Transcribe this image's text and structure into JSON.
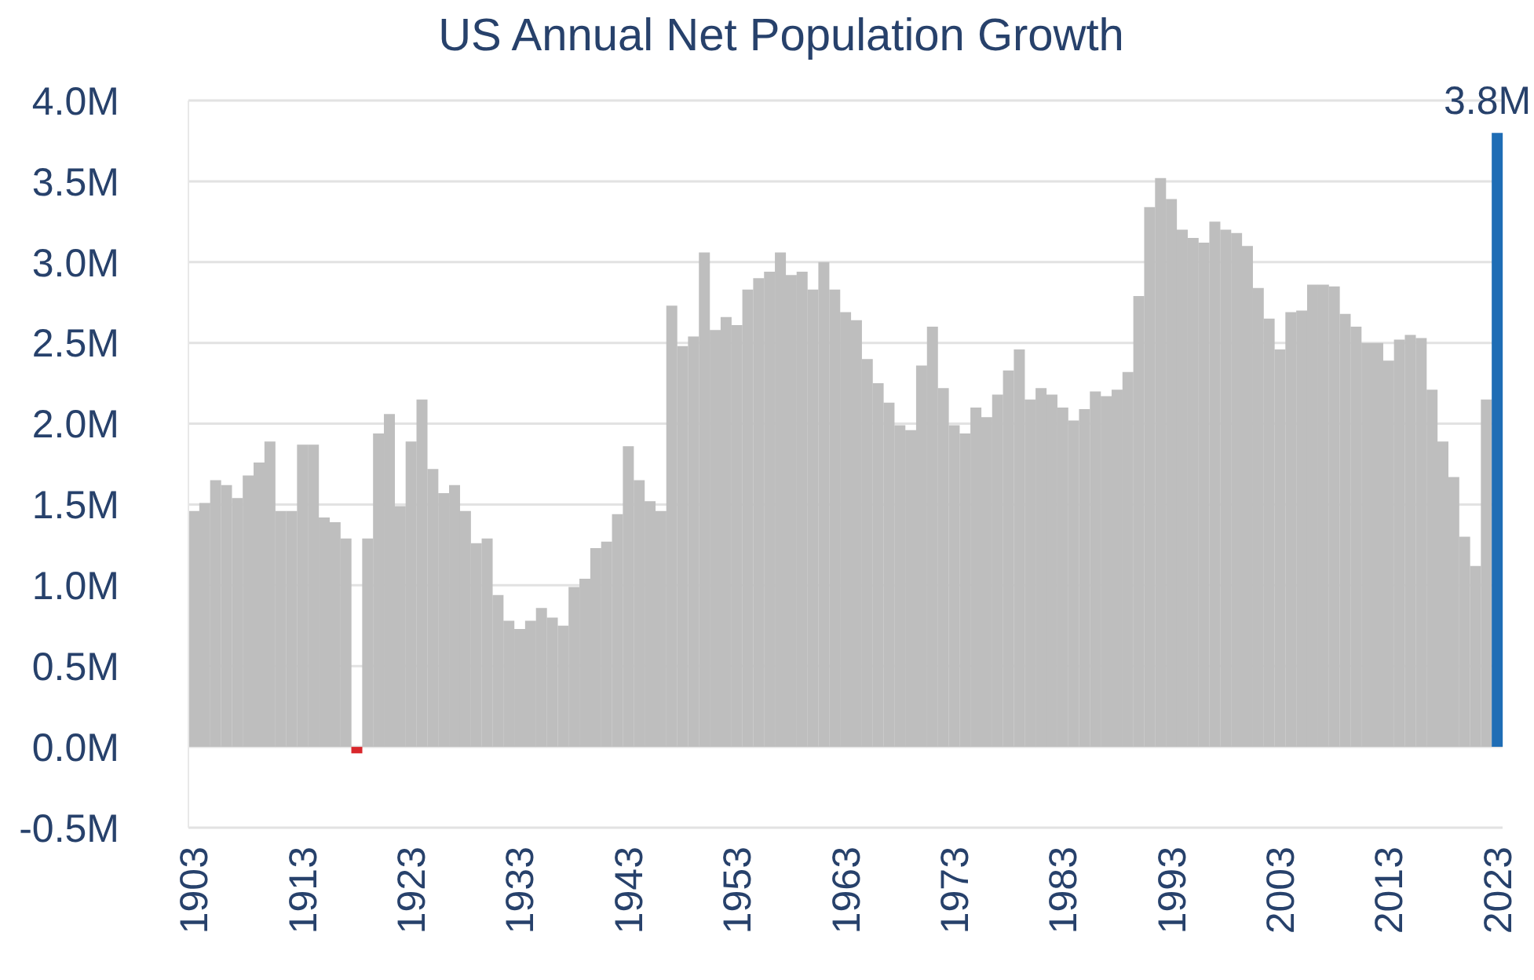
{
  "chart_data": {
    "type": "bar",
    "title": "US Annual Net Population Growth",
    "categories": [
      "1903",
      null,
      null,
      null,
      null,
      null,
      null,
      null,
      null,
      null,
      "1913",
      null,
      null,
      null,
      null,
      null,
      null,
      null,
      null,
      null,
      "1923",
      null,
      null,
      null,
      null,
      null,
      null,
      null,
      null,
      null,
      "1933",
      null,
      null,
      null,
      null,
      null,
      null,
      null,
      null,
      null,
      "1943",
      null,
      null,
      null,
      null,
      null,
      null,
      null,
      null,
      null,
      "1953",
      null,
      null,
      null,
      null,
      null,
      null,
      null,
      null,
      null,
      "1963",
      null,
      null,
      null,
      null,
      null,
      null,
      null,
      null,
      null,
      "1973",
      null,
      null,
      null,
      null,
      null,
      null,
      null,
      null,
      null,
      "1983",
      null,
      null,
      null,
      null,
      null,
      null,
      null,
      null,
      null,
      "1993",
      null,
      null,
      null,
      null,
      null,
      null,
      null,
      null,
      null,
      "2003",
      null,
      null,
      null,
      null,
      null,
      null,
      null,
      null,
      null,
      "2013",
      null,
      null,
      null,
      null,
      null,
      null,
      null,
      null,
      null,
      "2023"
    ],
    "values": [
      1.46,
      1.51,
      1.65,
      1.62,
      1.54,
      1.68,
      1.76,
      1.89,
      1.46,
      1.46,
      1.87,
      1.87,
      1.42,
      1.39,
      1.29,
      -0.04,
      1.29,
      1.94,
      2.06,
      1.49,
      1.89,
      2.15,
      1.72,
      1.57,
      1.62,
      1.46,
      1.26,
      1.29,
      0.94,
      0.78,
      0.73,
      0.78,
      0.86,
      0.8,
      0.75,
      0.99,
      1.04,
      1.23,
      1.27,
      1.44,
      1.86,
      1.65,
      1.52,
      1.46,
      2.73,
      2.48,
      2.54,
      3.06,
      2.58,
      2.66,
      2.61,
      2.83,
      2.9,
      2.94,
      3.06,
      2.92,
      2.94,
      2.83,
      3.0,
      2.83,
      2.69,
      2.64,
      2.4,
      2.25,
      2.13,
      1.99,
      1.96,
      2.36,
      2.6,
      2.22,
      1.99,
      1.94,
      2.1,
      2.04,
      2.18,
      2.33,
      2.46,
      2.15,
      2.22,
      2.18,
      2.1,
      2.02,
      2.09,
      2.2,
      2.17,
      2.21,
      2.32,
      2.79,
      3.34,
      3.52,
      3.39,
      3.2,
      3.15,
      3.12,
      3.25,
      3.2,
      3.18,
      3.1,
      2.84,
      2.65,
      2.46,
      2.69,
      2.7,
      2.86,
      2.86,
      2.85,
      2.68,
      2.6,
      2.5,
      2.5,
      2.39,
      2.52,
      2.55,
      2.53,
      2.21,
      1.89,
      1.67,
      1.3,
      1.12,
      2.15,
      3.8
    ],
    "colors": [
      "#bebebe",
      "#bebebe",
      "#bebebe",
      "#bebebe",
      "#bebebe",
      "#bebebe",
      "#bebebe",
      "#bebebe",
      "#bebebe",
      "#bebebe",
      "#bebebe",
      "#bebebe",
      "#bebebe",
      "#bebebe",
      "#bebebe",
      "#d9262b",
      "#bebebe",
      "#bebebe",
      "#bebebe",
      "#bebebe",
      "#bebebe",
      "#bebebe",
      "#bebebe",
      "#bebebe",
      "#bebebe",
      "#bebebe",
      "#bebebe",
      "#bebebe",
      "#bebebe",
      "#bebebe",
      "#bebebe",
      "#bebebe",
      "#bebebe",
      "#bebebe",
      "#bebebe",
      "#bebebe",
      "#bebebe",
      "#bebebe",
      "#bebebe",
      "#bebebe",
      "#bebebe",
      "#bebebe",
      "#bebebe",
      "#bebebe",
      "#bebebe",
      "#bebebe",
      "#bebebe",
      "#bebebe",
      "#bebebe",
      "#bebebe",
      "#bebebe",
      "#bebebe",
      "#bebebe",
      "#bebebe",
      "#bebebe",
      "#bebebe",
      "#bebebe",
      "#bebebe",
      "#bebebe",
      "#bebebe",
      "#bebebe",
      "#bebebe",
      "#bebebe",
      "#bebebe",
      "#bebebe",
      "#bebebe",
      "#bebebe",
      "#bebebe",
      "#bebebe",
      "#bebebe",
      "#bebebe",
      "#bebebe",
      "#bebebe",
      "#bebebe",
      "#bebebe",
      "#bebebe",
      "#bebebe",
      "#bebebe",
      "#bebebe",
      "#bebebe",
      "#bebebe",
      "#bebebe",
      "#bebebe",
      "#bebebe",
      "#bebebe",
      "#bebebe",
      "#bebebe",
      "#bebebe",
      "#bebebe",
      "#bebebe",
      "#bebebe",
      "#bebebe",
      "#bebebe",
      "#bebebe",
      "#bebebe",
      "#bebebe",
      "#bebebe",
      "#bebebe",
      "#bebebe",
      "#bebebe",
      "#bebebe",
      "#bebebe",
      "#bebebe",
      "#bebebe",
      "#bebebe",
      "#bebebe",
      "#bebebe",
      "#bebebe",
      "#bebebe",
      "#bebebe",
      "#bebebe",
      "#bebebe",
      "#bebebe",
      "#bebebe",
      "#bebebe",
      "#bebebe",
      "#bebebe",
      "#bebebe",
      "#bebebe",
      "#bebebe",
      "#1f6db5"
    ],
    "value_labels": [
      null,
      null,
      null,
      null,
      null,
      null,
      null,
      null,
      null,
      null,
      null,
      null,
      null,
      null,
      null,
      null,
      null,
      null,
      null,
      null,
      null,
      null,
      null,
      null,
      null,
      null,
      null,
      null,
      null,
      null,
      null,
      null,
      null,
      null,
      null,
      null,
      null,
      null,
      null,
      null,
      null,
      null,
      null,
      null,
      null,
      null,
      null,
      null,
      null,
      null,
      null,
      null,
      null,
      null,
      null,
      null,
      null,
      null,
      null,
      null,
      null,
      null,
      null,
      null,
      null,
      null,
      null,
      null,
      null,
      null,
      null,
      null,
      null,
      null,
      null,
      null,
      null,
      null,
      null,
      null,
      null,
      null,
      null,
      null,
      null,
      null,
      null,
      null,
      null,
      null,
      null,
      null,
      null,
      null,
      null,
      null,
      null,
      null,
      null,
      null,
      null,
      null,
      null,
      null,
      null,
      null,
      null,
      null,
      null,
      null,
      null,
      null,
      null,
      null,
      null,
      null,
      null,
      null,
      null,
      null,
      "3.8M"
    ],
    "ylim": [
      -0.5,
      4.0
    ],
    "yticks": [
      {
        "value": -0.5,
        "label": "-0.5M"
      },
      {
        "value": 0,
        "label": "0.0M"
      },
      {
        "value": 0.5,
        "label": "0.5M"
      },
      {
        "value": 1.0,
        "label": "1.0M"
      },
      {
        "value": 1.5,
        "label": "1.5M"
      },
      {
        "value": 2.0,
        "label": "2.0M"
      },
      {
        "value": 2.5,
        "label": "2.5M"
      },
      {
        "value": 3.0,
        "label": "3.0M"
      },
      {
        "value": 3.5,
        "label": "3.5M"
      },
      {
        "value": 4.0,
        "label": "4.0M"
      }
    ],
    "grid": "y"
  }
}
